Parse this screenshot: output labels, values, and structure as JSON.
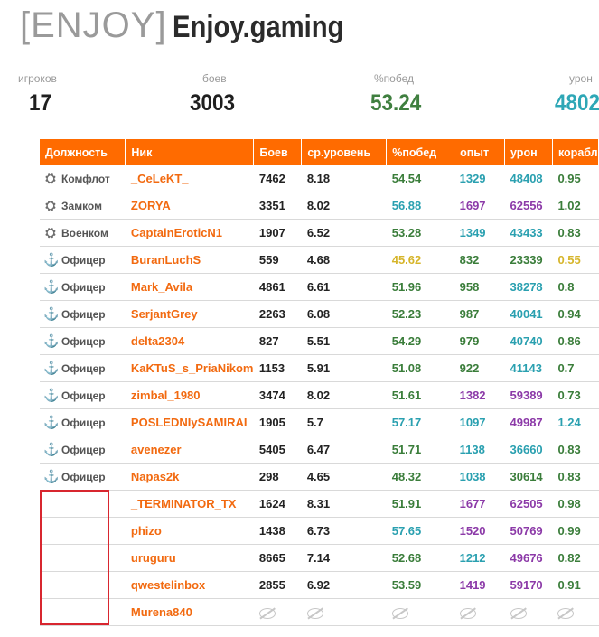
{
  "clan": {
    "tag": "[ENJOY]",
    "name": "Enjoy.gaming"
  },
  "stats": [
    {
      "label": "игроков",
      "value": "17",
      "color": "#1f1f1f"
    },
    {
      "label": "боев",
      "value": "3003",
      "color": "#1f1f1f"
    },
    {
      "label": "%побед",
      "value": "53.24",
      "color": "#3f7f3f"
    },
    {
      "label": "урон",
      "value": "4802",
      "color": "#2ea7b6"
    }
  ],
  "columns": [
    "Должность",
    "Ник",
    "Боев",
    "ср.уровень",
    "%побед",
    "опыт",
    "урон",
    "корабл"
  ],
  "colors": {
    "winrate_green": "#3a7d3a",
    "winrate_teal": "#2aa0b0",
    "winrate_yellow": "#d6b52a",
    "xp_teal": "#2aa0b0",
    "xp_purple": "#8c3aa8",
    "xp_green": "#3a7d3a",
    "dmg_teal": "#2aa0b0",
    "dmg_purple": "#8c3aa8"
  },
  "rows": [
    {
      "pos_icon": "commander-icon",
      "pos": "Комфлот",
      "nick": "_CeLeKT_",
      "battles": "7462",
      "lvl": "8.18",
      "win": "54.54",
      "win_c": "#3a7d3a",
      "xp": "1329",
      "xp_c": "#2aa0b0",
      "dmg": "48408",
      "dmg_c": "#2aa0b0",
      "ships": "0.95",
      "ships_c": "#3a7d3a"
    },
    {
      "pos_icon": "deputy-icon",
      "pos": "Замком",
      "nick": "ZORYA",
      "battles": "3351",
      "lvl": "8.02",
      "win": "56.88",
      "win_c": "#2aa0b0",
      "xp": "1697",
      "xp_c": "#8c3aa8",
      "dmg": "62556",
      "dmg_c": "#8c3aa8",
      "ships": "1.02",
      "ships_c": "#3a7d3a"
    },
    {
      "pos_icon": "recruiter-icon",
      "pos": "Военком",
      "nick": "CaptainEroticN1",
      "battles": "1907",
      "lvl": "6.52",
      "win": "53.28",
      "win_c": "#3a7d3a",
      "xp": "1349",
      "xp_c": "#2aa0b0",
      "dmg": "43433",
      "dmg_c": "#2aa0b0",
      "ships": "0.83",
      "ships_c": "#3a7d3a"
    },
    {
      "pos_icon": "anchor-icon",
      "pos": "Офицер",
      "nick": "BuranLuchS",
      "battles": "559",
      "lvl": "4.68",
      "win": "45.62",
      "win_c": "#d6b52a",
      "xp": "832",
      "xp_c": "#3a7d3a",
      "dmg": "23339",
      "dmg_c": "#3a7d3a",
      "ships": "0.55",
      "ships_c": "#d6b52a"
    },
    {
      "pos_icon": "anchor-icon",
      "pos": "Офицер",
      "nick": "Mark_Avila",
      "battles": "4861",
      "lvl": "6.61",
      "win": "51.96",
      "win_c": "#3a7d3a",
      "xp": "958",
      "xp_c": "#3a7d3a",
      "dmg": "38278",
      "dmg_c": "#2aa0b0",
      "ships": "0.8",
      "ships_c": "#3a7d3a"
    },
    {
      "pos_icon": "anchor-icon",
      "pos": "Офицер",
      "nick": "SerjantGrey",
      "battles": "2263",
      "lvl": "6.08",
      "win": "52.23",
      "win_c": "#3a7d3a",
      "xp": "987",
      "xp_c": "#3a7d3a",
      "dmg": "40041",
      "dmg_c": "#2aa0b0",
      "ships": "0.94",
      "ships_c": "#3a7d3a"
    },
    {
      "pos_icon": "anchor-icon",
      "pos": "Офицер",
      "nick": "delta2304",
      "battles": "827",
      "lvl": "5.51",
      "win": "54.29",
      "win_c": "#3a7d3a",
      "xp": "979",
      "xp_c": "#3a7d3a",
      "dmg": "40740",
      "dmg_c": "#2aa0b0",
      "ships": "0.86",
      "ships_c": "#3a7d3a"
    },
    {
      "pos_icon": "anchor-icon",
      "pos": "Офицер",
      "nick": "KaKTuS_s_PriaNikom",
      "battles": "1153",
      "lvl": "5.91",
      "win": "51.08",
      "win_c": "#3a7d3a",
      "xp": "922",
      "xp_c": "#3a7d3a",
      "dmg": "41143",
      "dmg_c": "#2aa0b0",
      "ships": "0.7",
      "ships_c": "#3a7d3a"
    },
    {
      "pos_icon": "anchor-icon",
      "pos": "Офицер",
      "nick": "zimbal_1980",
      "battles": "3474",
      "lvl": "8.02",
      "win": "51.61",
      "win_c": "#3a7d3a",
      "xp": "1382",
      "xp_c": "#8c3aa8",
      "dmg": "59389",
      "dmg_c": "#8c3aa8",
      "ships": "0.73",
      "ships_c": "#3a7d3a"
    },
    {
      "pos_icon": "anchor-icon",
      "pos": "Офицер",
      "nick": "POSLEDNIySAMIRAI",
      "battles": "1905",
      "lvl": "5.7",
      "win": "57.17",
      "win_c": "#2aa0b0",
      "xp": "1097",
      "xp_c": "#2aa0b0",
      "dmg": "49987",
      "dmg_c": "#8c3aa8",
      "ships": "1.24",
      "ships_c": "#2aa0b0"
    },
    {
      "pos_icon": "anchor-icon",
      "pos": "Офицер",
      "nick": "avenezer",
      "battles": "5405",
      "lvl": "6.47",
      "win": "51.71",
      "win_c": "#3a7d3a",
      "xp": "1138",
      "xp_c": "#2aa0b0",
      "dmg": "36660",
      "dmg_c": "#2aa0b0",
      "ships": "0.83",
      "ships_c": "#3a7d3a"
    },
    {
      "pos_icon": "anchor-icon",
      "pos": "Офицер",
      "nick": "Napas2k",
      "battles": "298",
      "lvl": "4.65",
      "win": "48.32",
      "win_c": "#3a7d3a",
      "xp": "1038",
      "xp_c": "#2aa0b0",
      "dmg": "30614",
      "dmg_c": "#3a7d3a",
      "ships": "0.83",
      "ships_c": "#3a7d3a"
    },
    {
      "pos_icon": "",
      "pos": "",
      "nick": "_TERMINATOR_TX",
      "battles": "1624",
      "lvl": "8.31",
      "win": "51.91",
      "win_c": "#3a7d3a",
      "xp": "1677",
      "xp_c": "#8c3aa8",
      "dmg": "62505",
      "dmg_c": "#8c3aa8",
      "ships": "0.98",
      "ships_c": "#3a7d3a"
    },
    {
      "pos_icon": "",
      "pos": "",
      "nick": "phizo",
      "battles": "1438",
      "lvl": "6.73",
      "win": "57.65",
      "win_c": "#2aa0b0",
      "xp": "1520",
      "xp_c": "#8c3aa8",
      "dmg": "50769",
      "dmg_c": "#8c3aa8",
      "ships": "0.99",
      "ships_c": "#3a7d3a"
    },
    {
      "pos_icon": "",
      "pos": "",
      "nick": "uruguru",
      "battles": "8665",
      "lvl": "7.14",
      "win": "52.68",
      "win_c": "#3a7d3a",
      "xp": "1212",
      "xp_c": "#2aa0b0",
      "dmg": "49676",
      "dmg_c": "#8c3aa8",
      "ships": "0.82",
      "ships_c": "#3a7d3a"
    },
    {
      "pos_icon": "",
      "pos": "",
      "nick": "qwestelinbox",
      "battles": "2855",
      "lvl": "6.92",
      "win": "53.59",
      "win_c": "#3a7d3a",
      "xp": "1419",
      "xp_c": "#8c3aa8",
      "dmg": "59170",
      "dmg_c": "#8c3aa8",
      "ships": "0.91",
      "ships_c": "#3a7d3a"
    },
    {
      "pos_icon": "",
      "pos": "",
      "nick": "Murena840",
      "hidden": true
    }
  ]
}
